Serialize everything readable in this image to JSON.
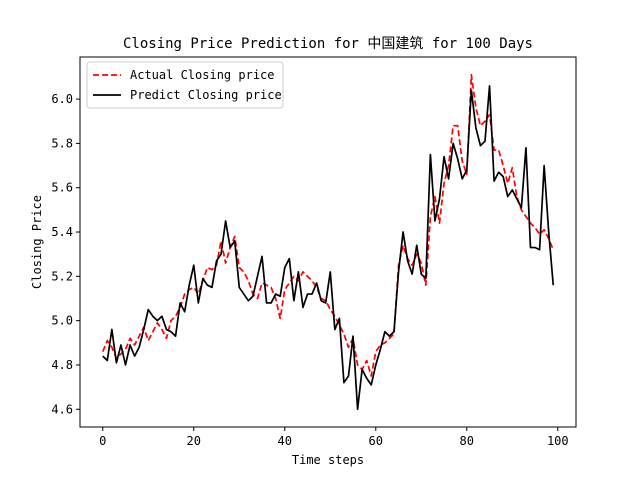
{
  "chart_data": {
    "type": "line",
    "title": "Closing Price Prediction for 中国建筑 for 100 Days",
    "xlabel": "Time steps",
    "ylabel": "Closing Price",
    "xlim": [
      -5,
      104
    ],
    "ylim": [
      4.52,
      6.19
    ],
    "xticks": [
      0,
      20,
      40,
      60,
      80,
      100
    ],
    "yticks": [
      4.6,
      4.8,
      5.0,
      5.2,
      5.4,
      5.6,
      5.8,
      6.0
    ],
    "grid": false,
    "legend_position": "top-left",
    "series": [
      {
        "name": "Actual Closing price",
        "color": "#ff0000",
        "style": "dashed",
        "values": [
          4.86,
          4.91,
          4.88,
          4.83,
          4.85,
          4.87,
          4.92,
          4.89,
          4.93,
          4.97,
          4.91,
          4.95,
          4.99,
          4.96,
          4.92,
          5.0,
          5.02,
          5.06,
          5.12,
          5.14,
          5.15,
          5.12,
          5.18,
          5.24,
          5.23,
          5.25,
          5.36,
          5.26,
          5.33,
          5.38,
          5.24,
          5.22,
          5.18,
          5.12,
          5.1,
          5.17,
          5.16,
          5.15,
          5.1,
          5.01,
          5.14,
          5.17,
          5.2,
          5.18,
          5.22,
          5.2,
          5.18,
          5.15,
          5.1,
          5.09,
          5.05,
          5.02,
          4.98,
          4.94,
          4.88,
          4.92,
          4.8,
          4.78,
          4.82,
          4.75,
          4.86,
          4.89,
          4.9,
          4.92,
          4.94,
          5.25,
          5.34,
          5.28,
          5.25,
          5.3,
          5.26,
          5.16,
          5.47,
          5.56,
          5.44,
          5.62,
          5.7,
          5.88,
          5.88,
          5.72,
          5.66,
          6.11,
          5.96,
          5.88,
          5.9,
          5.93,
          5.77,
          5.77,
          5.7,
          5.62,
          5.69,
          5.56,
          5.5,
          5.47,
          5.44,
          5.42,
          5.39,
          5.41,
          5.37,
          5.32
        ]
      },
      {
        "name": "Predict Closing price",
        "color": "#000000",
        "style": "solid",
        "values": [
          4.84,
          4.82,
          4.96,
          4.81,
          4.89,
          4.8,
          4.89,
          4.84,
          4.88,
          4.96,
          5.05,
          5.02,
          5.0,
          5.02,
          4.96,
          4.95,
          4.93,
          5.08,
          5.04,
          5.16,
          5.25,
          5.08,
          5.19,
          5.16,
          5.15,
          5.27,
          5.3,
          5.45,
          5.33,
          5.36,
          5.15,
          5.12,
          5.09,
          5.11,
          5.2,
          5.29,
          5.08,
          5.08,
          5.12,
          5.11,
          5.24,
          5.28,
          5.09,
          5.22,
          5.06,
          5.12,
          5.12,
          5.17,
          5.09,
          5.08,
          5.22,
          4.96,
          5.01,
          4.72,
          4.75,
          4.93,
          4.6,
          4.78,
          4.74,
          4.71,
          4.8,
          4.87,
          4.95,
          4.93,
          4.95,
          5.22,
          5.4,
          5.27,
          5.21,
          5.34,
          5.21,
          5.19,
          5.75,
          5.45,
          5.55,
          5.74,
          5.64,
          5.8,
          5.73,
          5.64,
          5.68,
          6.04,
          5.87,
          5.79,
          5.81,
          6.06,
          5.63,
          5.67,
          5.65,
          5.56,
          5.59,
          5.55,
          5.51,
          5.78,
          5.33,
          5.33,
          5.32,
          5.7,
          5.4,
          5.16
        ]
      }
    ]
  }
}
